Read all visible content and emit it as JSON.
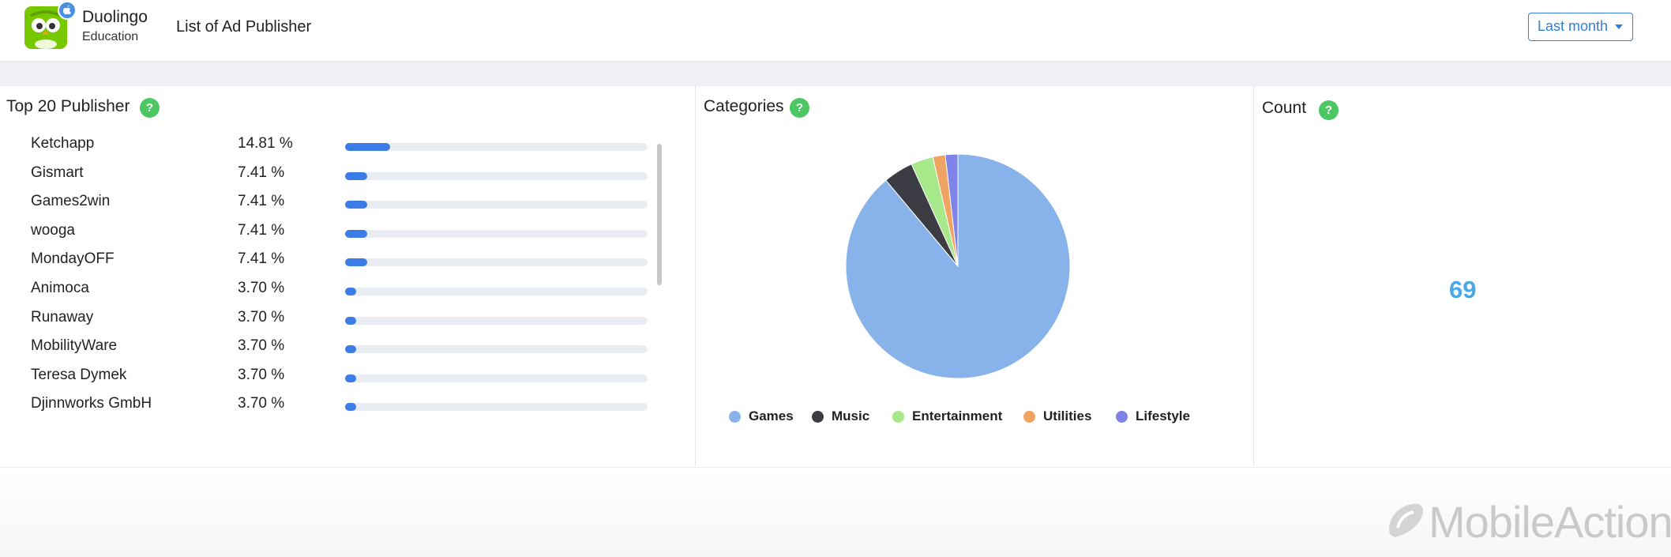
{
  "header": {
    "app_name": "Duolingo",
    "app_category": "Education",
    "page_title": "List of Ad Publisher",
    "date_range": "Last month",
    "app_icon": "duolingo-owl-icon",
    "platform_icon": "apple-icon"
  },
  "publishers": {
    "title": "Top 20 Publisher",
    "help": "?",
    "rows": [
      {
        "name": "Ketchapp",
        "percent": "14.81 %",
        "value": 14.81
      },
      {
        "name": "Gismart",
        "percent": "7.41 %",
        "value": 7.41
      },
      {
        "name": "Games2win",
        "percent": "7.41 %",
        "value": 7.41
      },
      {
        "name": "wooga",
        "percent": "7.41 %",
        "value": 7.41
      },
      {
        "name": "MondayOFF",
        "percent": "7.41 %",
        "value": 7.41
      },
      {
        "name": "Animoca",
        "percent": "3.70 %",
        "value": 3.7
      },
      {
        "name": "Runaway",
        "percent": "3.70 %",
        "value": 3.7
      },
      {
        "name": "MobilityWare",
        "percent": "3.70 %",
        "value": 3.7
      },
      {
        "name": "Teresa Dymek",
        "percent": "3.70 %",
        "value": 3.7
      },
      {
        "name": "Djinnworks GmbH",
        "percent": "3.70 %",
        "value": 3.7
      }
    ]
  },
  "categories": {
    "title": "Categories",
    "help": "?"
  },
  "chart_data": {
    "type": "pie",
    "categories": [
      "Games",
      "Music",
      "Entertainment",
      "Utilities",
      "Lifestyle"
    ],
    "values": [
      88.9,
      4.3,
      3.2,
      1.8,
      1.8
    ],
    "colors": [
      "#87b3ea",
      "#3b3c44",
      "#a6e88a",
      "#f0a463",
      "#7f82e6"
    ],
    "legend": "bottom"
  },
  "count": {
    "title": "Count",
    "help": "?",
    "value": "69"
  },
  "footer": {
    "watermark": "MobileAction",
    "watermark_icon": "mobileaction-logo-icon"
  }
}
